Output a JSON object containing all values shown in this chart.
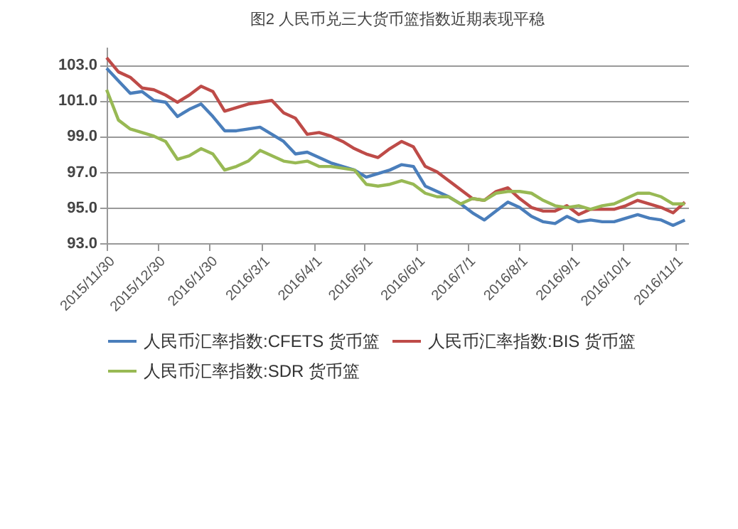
{
  "chart_data": {
    "type": "line",
    "title": "图2  人民币兑三大货币篮指数近期表现平稳",
    "x": [
      "2015-11-30",
      "2015-12-07",
      "2015-12-14",
      "2015-12-21",
      "2015-12-28",
      "2016-01-04",
      "2016-01-11",
      "2016-01-18",
      "2016-01-25",
      "2016-02-01",
      "2016-02-08",
      "2016-02-15",
      "2016-02-22",
      "2016-02-29",
      "2016-03-07",
      "2016-03-14",
      "2016-03-21",
      "2016-03-28",
      "2016-04-04",
      "2016-04-11",
      "2016-04-18",
      "2016-04-25",
      "2016-05-02",
      "2016-05-09",
      "2016-05-16",
      "2016-05-23",
      "2016-05-30",
      "2016-06-06",
      "2016-06-13",
      "2016-06-20",
      "2016-06-27",
      "2016-07-04",
      "2016-07-11",
      "2016-07-18",
      "2016-07-25",
      "2016-08-01",
      "2016-08-08",
      "2016-08-15",
      "2016-08-22",
      "2016-08-29",
      "2016-09-05",
      "2016-09-12",
      "2016-09-19",
      "2016-09-26",
      "2016-10-03",
      "2016-10-10",
      "2016-10-17",
      "2016-10-24",
      "2016-10-31",
      "2016-11-07"
    ],
    "series": [
      {
        "name": "人民币汇率指数:CFETS 货币篮",
        "color": "#4a7ebb",
        "values": [
          102.8,
          102.1,
          101.4,
          101.5,
          101.0,
          100.9,
          100.1,
          100.5,
          100.8,
          100.1,
          99.3,
          99.3,
          99.4,
          99.5,
          99.1,
          98.7,
          98.0,
          98.1,
          97.8,
          97.5,
          97.3,
          97.1,
          96.7,
          96.9,
          97.1,
          97.4,
          97.3,
          96.2,
          95.9,
          95.6,
          95.2,
          94.7,
          94.3,
          94.8,
          95.3,
          95.0,
          94.5,
          94.2,
          94.1,
          94.5,
          94.2,
          94.3,
          94.2,
          94.2,
          94.4,
          94.6,
          94.4,
          94.3,
          94.0,
          94.3
        ]
      },
      {
        "name": "人民币汇率指数:BIS 货币篮",
        "color": "#be4b48",
        "values": [
          103.4,
          102.6,
          102.3,
          101.7,
          101.6,
          101.3,
          100.9,
          101.3,
          101.8,
          101.5,
          100.4,
          100.6,
          100.8,
          100.9,
          101.0,
          100.3,
          100.0,
          99.1,
          99.2,
          99.0,
          98.7,
          98.3,
          98.0,
          97.8,
          98.3,
          98.7,
          98.4,
          97.3,
          97.0,
          96.5,
          96.0,
          95.5,
          95.4,
          95.9,
          96.1,
          95.5,
          95.0,
          94.8,
          94.8,
          95.1,
          94.6,
          94.9,
          94.9,
          94.9,
          95.1,
          95.4,
          95.2,
          95.0,
          94.7,
          95.3
        ]
      },
      {
        "name": "人民币汇率指数:SDR 货币篮",
        "color": "#98b954",
        "values": [
          101.6,
          99.9,
          99.4,
          99.2,
          99.0,
          98.7,
          97.7,
          97.9,
          98.3,
          98.0,
          97.1,
          97.3,
          97.6,
          98.2,
          97.9,
          97.6,
          97.5,
          97.6,
          97.3,
          97.3,
          97.2,
          97.1,
          96.3,
          96.2,
          96.3,
          96.5,
          96.3,
          95.8,
          95.6,
          95.6,
          95.2,
          95.5,
          95.4,
          95.8,
          95.9,
          95.9,
          95.8,
          95.4,
          95.1,
          95.0,
          95.1,
          94.9,
          95.1,
          95.2,
          95.5,
          95.8,
          95.8,
          95.6,
          95.2,
          95.2
        ]
      }
    ],
    "xlim": [
      "2015-11-30",
      "2016-11-09"
    ],
    "xticks": [
      {
        "value": "2015-11-30",
        "label": "2015/11/30"
      },
      {
        "value": "2015-12-30",
        "label": "2015/12/30"
      },
      {
        "value": "2016-01-30",
        "label": "2016/1/30"
      },
      {
        "value": "2016-03-01",
        "label": "2016/3/1"
      },
      {
        "value": "2016-04-01",
        "label": "2016/4/1"
      },
      {
        "value": "2016-05-01",
        "label": "2016/5/1"
      },
      {
        "value": "2016-06-01",
        "label": "2016/6/1"
      },
      {
        "value": "2016-07-01",
        "label": "2016/7/1"
      },
      {
        "value": "2016-08-01",
        "label": "2016/8/1"
      },
      {
        "value": "2016-09-01",
        "label": "2016/9/1"
      },
      {
        "value": "2016-10-01",
        "label": "2016/10/1"
      },
      {
        "value": "2016-11-01",
        "label": "2016/11/1"
      }
    ],
    "ylim": [
      93,
      104
    ],
    "yticks": [
      {
        "value": 93,
        "label": "93.0"
      },
      {
        "value": 95,
        "label": "95.0"
      },
      {
        "value": 97,
        "label": "97.0"
      },
      {
        "value": 99,
        "label": "99.0"
      },
      {
        "value": 101,
        "label": "101.0"
      },
      {
        "value": 103,
        "label": "103.0"
      }
    ],
    "grid": "y",
    "legend": "bottom",
    "marker": "none",
    "line_style": "solid"
  }
}
